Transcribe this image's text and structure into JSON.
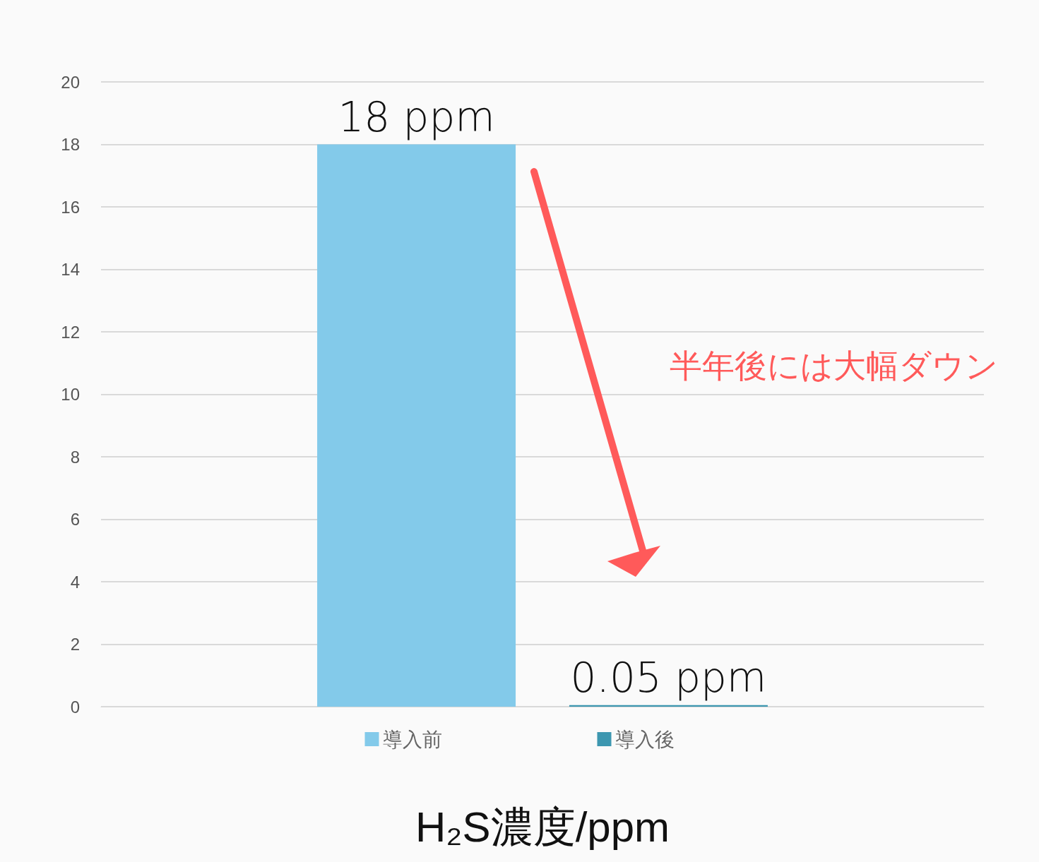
{
  "chart_data": {
    "type": "bar",
    "categories": [
      null
    ],
    "series": [
      {
        "name": "導入前",
        "color": "#83caea",
        "values": [
          18
        ],
        "value_labels": [
          "18 ppm"
        ]
      },
      {
        "name": "導入後",
        "color": "#3d97b0",
        "values": [
          0.05
        ],
        "value_labels": [
          "0.05 ppm"
        ]
      }
    ],
    "xlabel": "H₂S濃度/ppm",
    "annotations": [
      "半年後には大幅ダウン"
    ],
    "ylim": [
      0,
      20
    ],
    "yticks": [
      0,
      2,
      4,
      6,
      8,
      10,
      12,
      14,
      16,
      18,
      20
    ],
    "grid": "y",
    "legend": "bottom"
  }
}
